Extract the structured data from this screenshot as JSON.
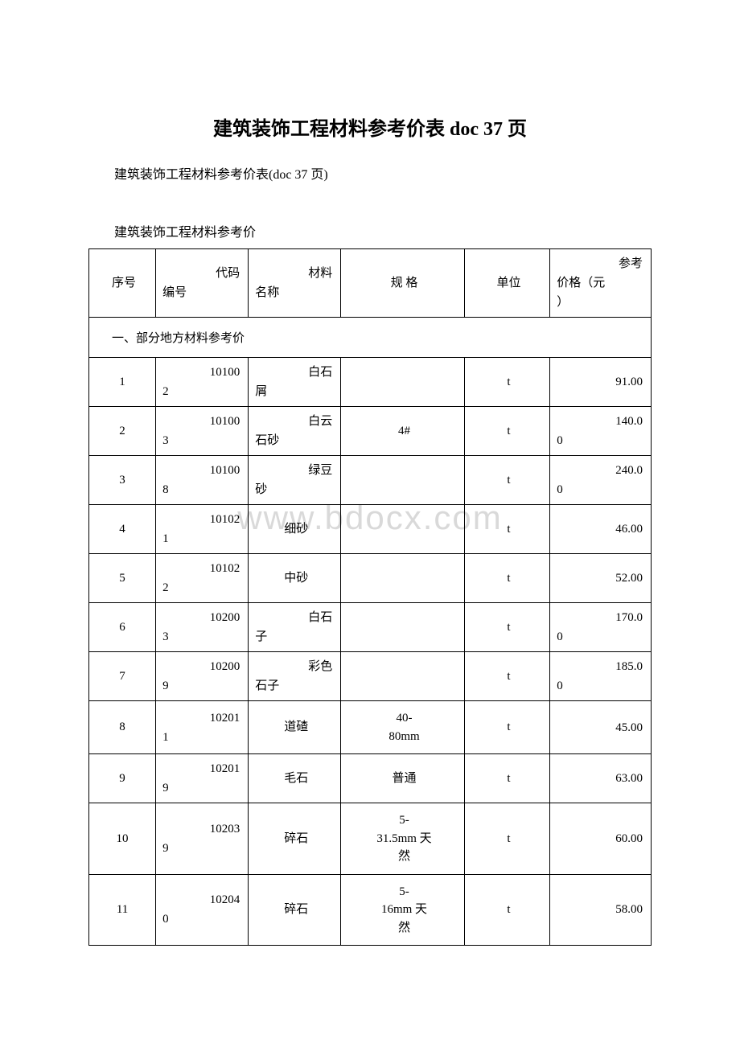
{
  "title": "建筑装饰工程材料参考价表 doc 37 页",
  "subtitle": "建筑装饰工程材料参考价表(doc 37 页)",
  "sectionLabel": "建筑装饰工程材料参考价",
  "watermark": "www.bdocx.com",
  "table": {
    "headers": {
      "seq": "序号",
      "code_l1": "代码",
      "code_l2": "编号",
      "name_l1": "材料",
      "name_l2": "名称",
      "spec": "规 格",
      "unit": "单位",
      "price_l1": "参考",
      "price_l2": "价格（元",
      "price_l3": "）"
    },
    "sectionTitle": "一、部分地方材料参考价",
    "rows": [
      {
        "seq": "1",
        "code_l1": "10100",
        "code_l2": "2",
        "name_l1": "白石",
        "name_l2": "屑",
        "spec": "",
        "unit": "t",
        "price_l1": "91.00",
        "price_l2": ""
      },
      {
        "seq": "2",
        "code_l1": "10100",
        "code_l2": "3",
        "name_l1": "白云",
        "name_l2": "石砂",
        "spec": "4#",
        "unit": "t",
        "price_l1": "140.0",
        "price_l2": "0"
      },
      {
        "seq": "3",
        "code_l1": "10100",
        "code_l2": "8",
        "name_l1": "绿豆",
        "name_l2": "砂",
        "spec": "",
        "unit": "t",
        "price_l1": "240.0",
        "price_l2": "0"
      },
      {
        "seq": "4",
        "code_l1": "10102",
        "code_l2": "1",
        "name_l1": "",
        "name_l2": "细砂",
        "spec": "",
        "unit": "t",
        "price_l1": "46.00",
        "price_l2": ""
      },
      {
        "seq": "5",
        "code_l1": "10102",
        "code_l2": "2",
        "name_l1": "",
        "name_l2": "中砂",
        "spec": "",
        "unit": "t",
        "price_l1": "52.00",
        "price_l2": ""
      },
      {
        "seq": "6",
        "code_l1": "10200",
        "code_l2": "3",
        "name_l1": "白石",
        "name_l2": "子",
        "spec": "",
        "unit": "t",
        "price_l1": "170.0",
        "price_l2": "0"
      },
      {
        "seq": "7",
        "code_l1": "10200",
        "code_l2": "9",
        "name_l1": "彩色",
        "name_l2": "石子",
        "spec": "",
        "unit": "t",
        "price_l1": "185.0",
        "price_l2": "0"
      },
      {
        "seq": "8",
        "code_l1": "10201",
        "code_l2": "1",
        "name_l1": "",
        "name_l2": "道碴",
        "spec": "40-80mm",
        "unit": "t",
        "price_l1": "45.00",
        "price_l2": ""
      },
      {
        "seq": "9",
        "code_l1": "10201",
        "code_l2": "9",
        "name_l1": "",
        "name_l2": "毛石",
        "spec": "普通",
        "unit": "t",
        "price_l1": "63.00",
        "price_l2": ""
      },
      {
        "seq": "10",
        "code_l1": "10203",
        "code_l2": "9",
        "name_l1": "",
        "name_l2": "碎石",
        "spec": "5-31.5mm 天然",
        "unit": "t",
        "price_l1": "60.00",
        "price_l2": ""
      },
      {
        "seq": "11",
        "code_l1": "10204",
        "code_l2": "0",
        "name_l1": "",
        "name_l2": "碎石",
        "spec": "5-16mm 天然",
        "unit": "t",
        "price_l1": "58.00",
        "price_l2": ""
      }
    ]
  }
}
